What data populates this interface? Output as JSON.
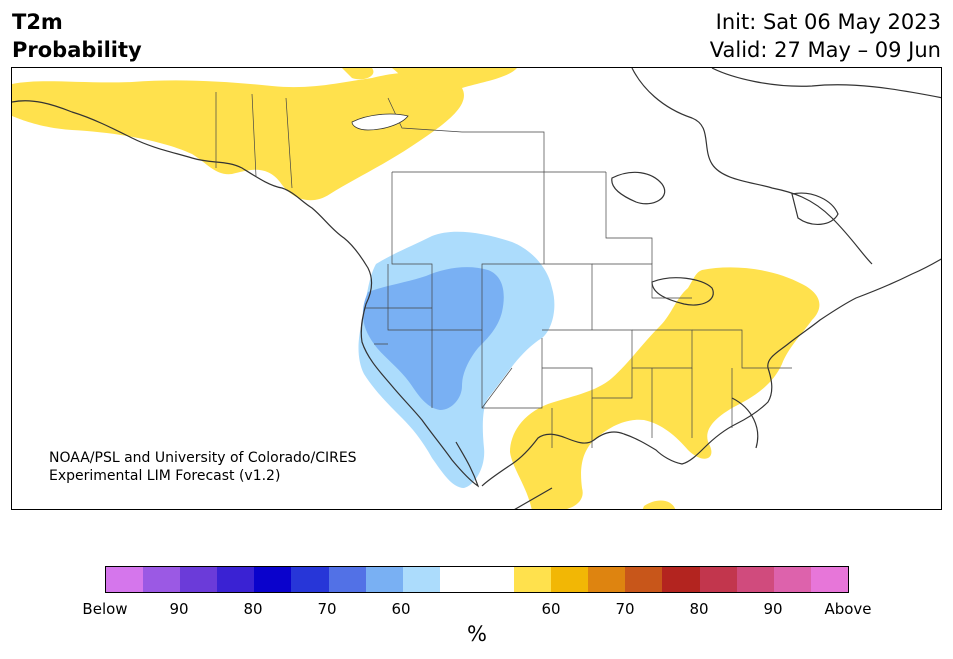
{
  "title": {
    "variable": "T2m",
    "type": "Probability"
  },
  "init_label": "Init: Sat 06 May 2023",
  "valid_label": "Valid: 27 May – 09 Jun",
  "credit": {
    "line1": "NOAA/PSL and University of Colorado/CIRES",
    "line2": "Experimental LIM Forecast (v1.2)"
  },
  "colorbar": {
    "colors": [
      "#d576ec",
      "#9b59e4",
      "#6b3bd9",
      "#3a22d3",
      "#0a02cc",
      "#2736d8",
      "#5271e6",
      "#79b0f3",
      "#acdcfc",
      "#ffffff",
      "#ffffff",
      "#ffe14d",
      "#f2b705",
      "#de8410",
      "#c8561a",
      "#b3241f",
      "#c2364d",
      "#d04b7d",
      "#dd62ac",
      "#e776d9"
    ],
    "tick_labels": [
      "Below",
      "90",
      "80",
      "70",
      "60",
      "60",
      "70",
      "80",
      "90",
      "Above"
    ],
    "unit": "%"
  },
  "legend_colors": {
    "below_light": "#acdcfc",
    "below_mid": "#79b0f3",
    "above_light": "#ffe14d"
  }
}
